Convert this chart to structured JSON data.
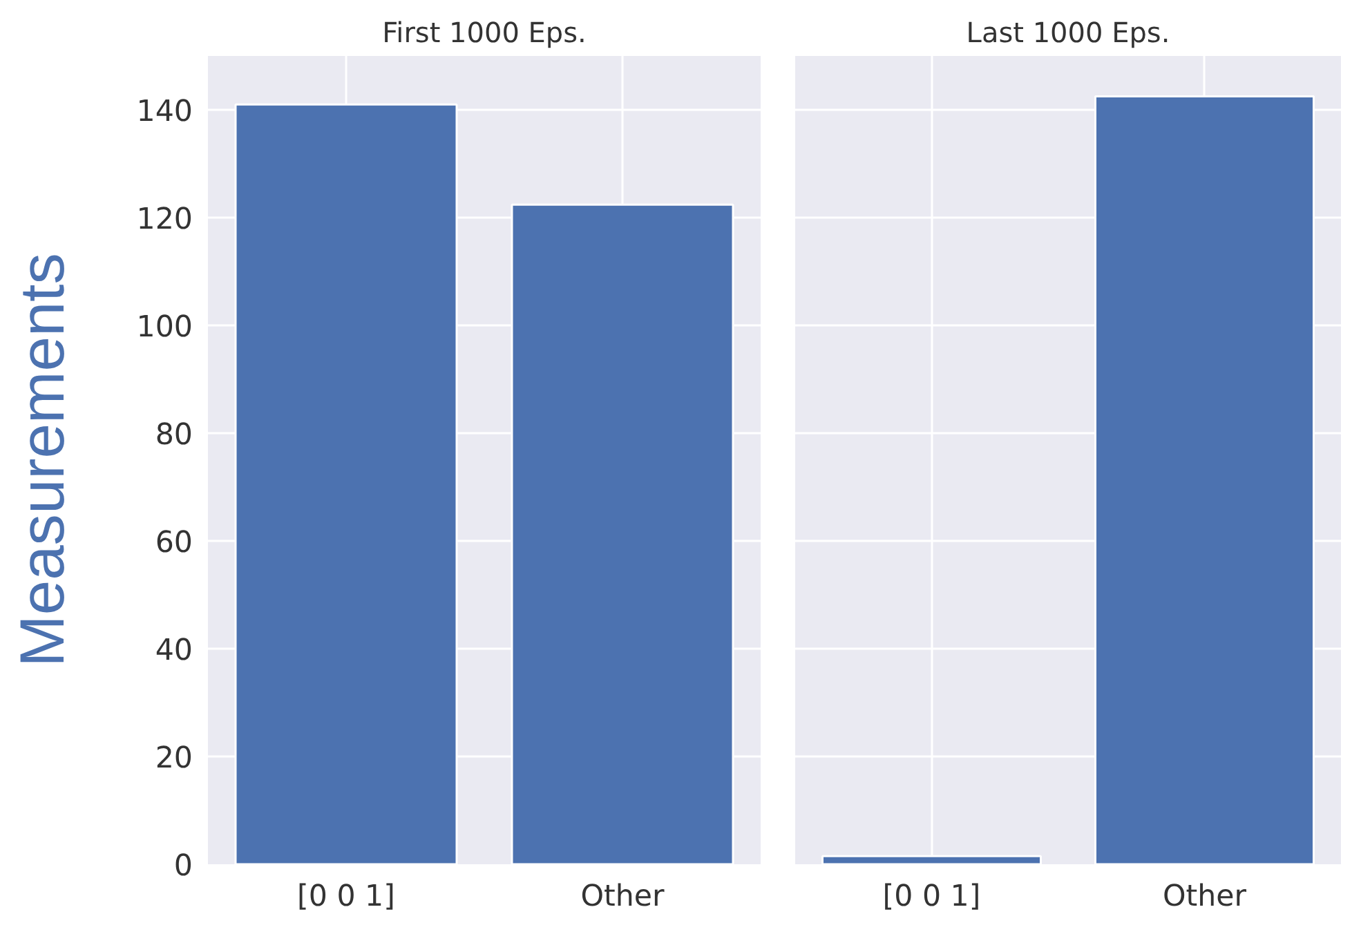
{
  "chart_data": [
    {
      "type": "bar",
      "title": "First 1000 Eps.",
      "ylabel": "Measurements",
      "categories": [
        "[0 0 1]",
        "Other"
      ],
      "values": [
        141,
        122.4
      ],
      "color": "#4c72b0",
      "ylim": [
        0,
        150
      ],
      "yticks": [
        0,
        20,
        40,
        60,
        80,
        100,
        120,
        140
      ],
      "grid": true
    },
    {
      "type": "bar",
      "title": "Last 1000 Eps.",
      "categories": [
        "[0 0 1]",
        "Other"
      ],
      "values": [
        1.5,
        142.5
      ],
      "color": "#4c72b0",
      "ylim": [
        0,
        150
      ],
      "yticks": [
        0,
        20,
        40,
        60,
        80,
        100,
        120,
        140
      ],
      "grid": true,
      "tick_labels": "x"
    }
  ]
}
